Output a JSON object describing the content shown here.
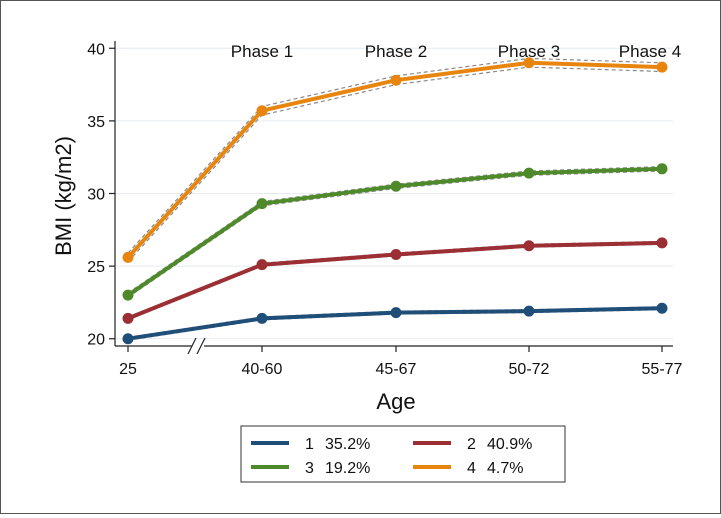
{
  "chart_data": {
    "type": "line",
    "xlabel": "Age",
    "ylabel": "BMI (kg/m2)",
    "categories": [
      "25",
      "40-60",
      "45-67",
      "50-72",
      "55-77"
    ],
    "ylim": [
      19.5,
      40.5
    ],
    "yticks": [
      20,
      25,
      30,
      35,
      40
    ],
    "grid": true,
    "axis_break_after_first_category": true,
    "phase_labels": [
      "Phase 1",
      "Phase 2",
      "Phase 3",
      "Phase 4"
    ],
    "legend_position": "bottom",
    "series": [
      {
        "name": "1",
        "share": "35.2%",
        "color": "#1f4e79",
        "values": [
          20.0,
          21.4,
          21.8,
          21.9,
          22.1
        ],
        "ci_band": 0.1
      },
      {
        "name": "2",
        "share": "40.9%",
        "color": "#9c2f34",
        "values": [
          21.4,
          25.1,
          25.8,
          26.4,
          26.6
        ],
        "ci_band": 0.1
      },
      {
        "name": "3",
        "share": "19.2%",
        "color": "#4e8a2a",
        "values": [
          23.0,
          29.3,
          30.5,
          31.4,
          31.7
        ],
        "ci_band": 0.15
      },
      {
        "name": "4",
        "share": "4.7%",
        "color": "#e8850e",
        "values": [
          25.6,
          35.7,
          37.8,
          39.0,
          38.7
        ],
        "ci_band": 0.3
      }
    ]
  }
}
